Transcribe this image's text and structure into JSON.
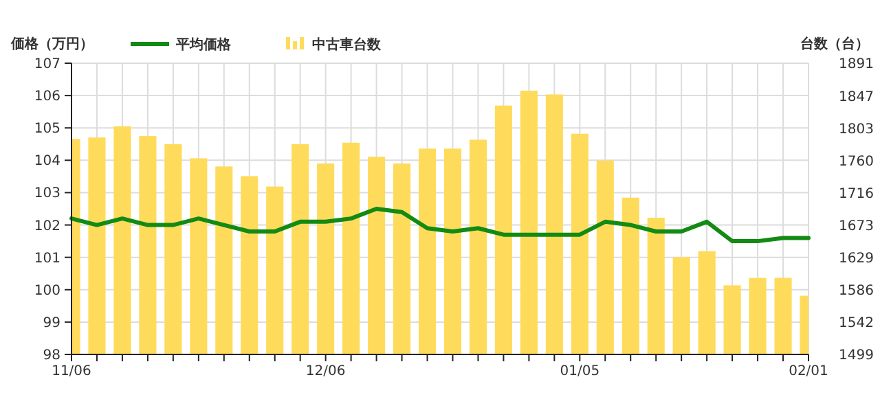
{
  "chart_data": {
    "type": "bar",
    "ylabel": "価格（万円）",
    "y2label": "台数（台）",
    "categories": [
      "11/06",
      null,
      null,
      null,
      null,
      null,
      null,
      null,
      null,
      null,
      "12/06",
      null,
      null,
      null,
      null,
      null,
      null,
      null,
      null,
      null,
      "01/05",
      null,
      null,
      null,
      null,
      null,
      null,
      null,
      null,
      "02/01"
    ],
    "series": [
      {
        "name": "平均価格",
        "type": "line",
        "axis": "y",
        "color": "#138a13",
        "values": [
          102.2,
          102.0,
          102.2,
          102.0,
          102.0,
          102.2,
          102.0,
          101.8,
          101.8,
          102.1,
          102.1,
          102.2,
          102.5,
          102.4,
          101.9,
          101.8,
          101.9,
          101.7,
          101.7,
          101.7,
          101.7,
          102.1,
          102.0,
          101.8,
          101.8,
          102.1,
          101.5,
          101.5,
          101.6,
          101.6
        ]
      },
      {
        "name": "中古車台数",
        "axis": "y2",
        "color": "#ffdb5c",
        "values": [
          1789,
          1791,
          1806,
          1793,
          1782,
          1763,
          1752,
          1739,
          1725,
          1782,
          1756,
          1784,
          1765,
          1756,
          1776,
          1776,
          1788,
          1834,
          1854,
          1849,
          1796,
          1760,
          1710,
          1683,
          1630,
          1638,
          1592,
          1602,
          1602,
          1578
        ]
      }
    ],
    "ylim": [
      98,
      107
    ],
    "yticks": [
      98,
      99,
      100,
      101,
      102,
      103,
      104,
      105,
      106,
      107
    ],
    "y2lim": [
      1499,
      1891
    ],
    "y2ticks": [
      1499,
      1542,
      1586,
      1629,
      1673,
      1716,
      1760,
      1803,
      1847,
      1891
    ],
    "grid": true,
    "legend": "top left",
    "marker": "none",
    "line_style": "solid"
  }
}
